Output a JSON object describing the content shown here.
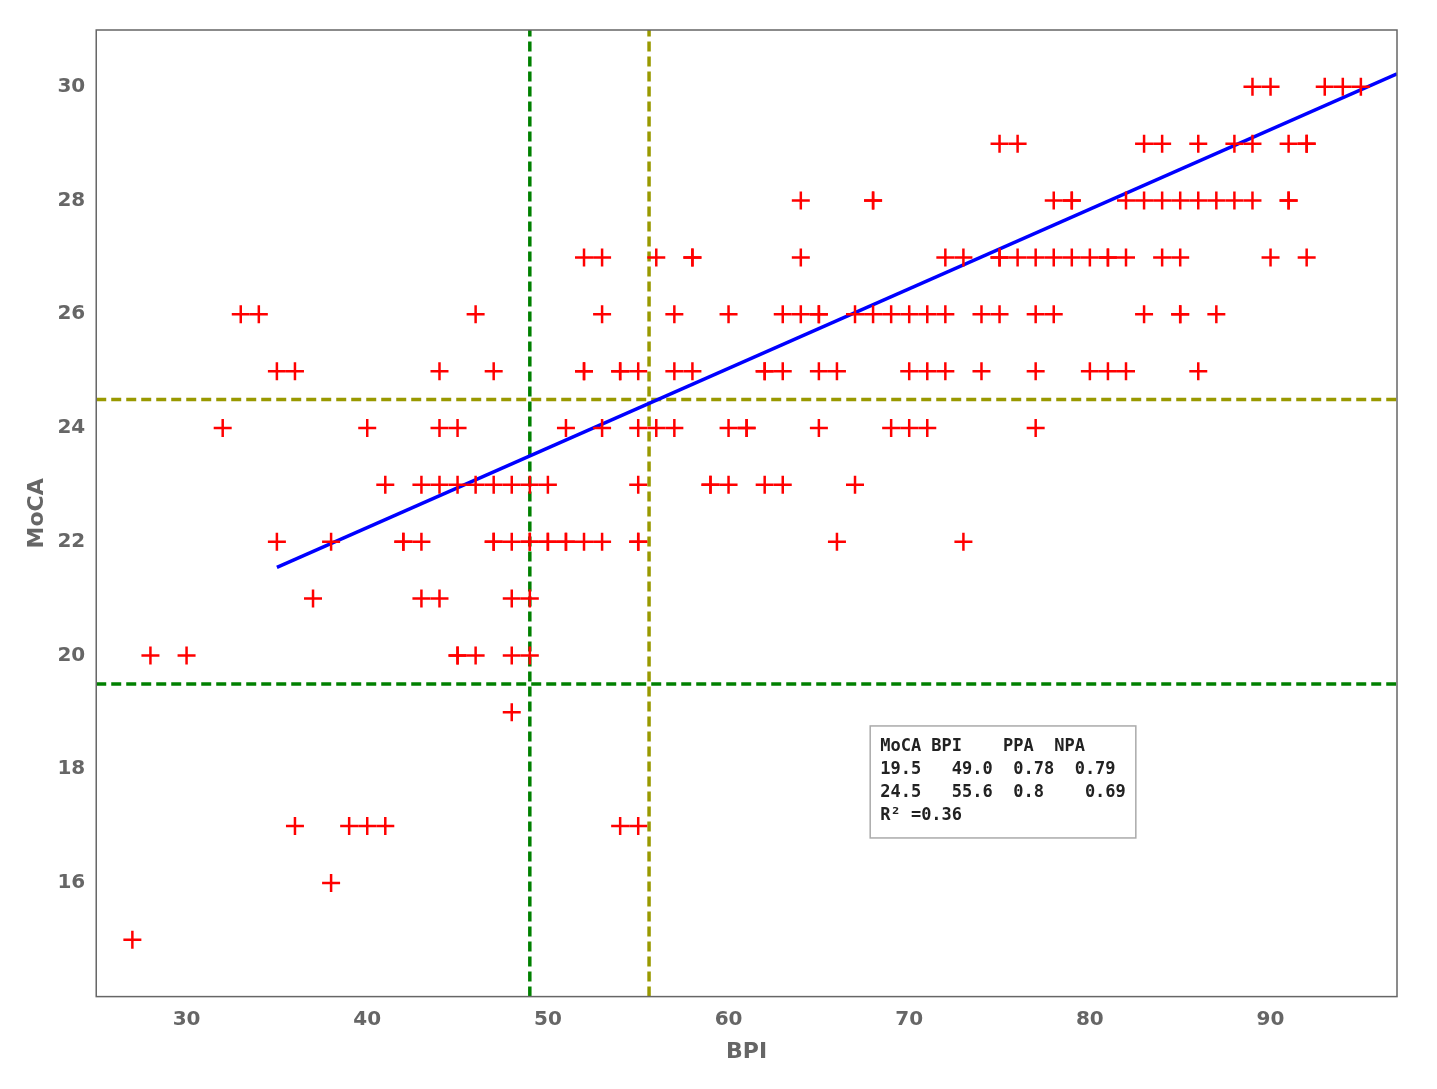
{
  "chart_data": {
    "type": "scatter",
    "xlabel": "BPI",
    "ylabel": "MoCA",
    "xlim": [
      25,
      97
    ],
    "ylim": [
      14,
      31
    ],
    "xticks": [
      30,
      40,
      50,
      60,
      70,
      80,
      90
    ],
    "yticks": [
      16,
      18,
      20,
      22,
      24,
      26,
      28,
      30
    ],
    "grid": false,
    "series": [
      {
        "type": "scatter",
        "color": "#ff0000",
        "marker": "+",
        "x": [
          27,
          28,
          30,
          32,
          33,
          34,
          35,
          35,
          36,
          36,
          37,
          38,
          38,
          39,
          40,
          40,
          41,
          41,
          42,
          42,
          43,
          43,
          43,
          44,
          44,
          44,
          44,
          45,
          45,
          45,
          45,
          46,
          46,
          46,
          47,
          47,
          47,
          47,
          48,
          48,
          48,
          48,
          48,
          49,
          49,
          49,
          49,
          49,
          50,
          50,
          50,
          51,
          51,
          51,
          52,
          52,
          52,
          52,
          53,
          53,
          53,
          53,
          54,
          54,
          54,
          55,
          55,
          55,
          55,
          55,
          55,
          56,
          56,
          57,
          57,
          57,
          58,
          58,
          58,
          59,
          59,
          60,
          60,
          60,
          61,
          61,
          62,
          62,
          62,
          63,
          63,
          63,
          64,
          64,
          64,
          65,
          65,
          65,
          65,
          66,
          66,
          67,
          67,
          68,
          68,
          68,
          69,
          69,
          70,
          70,
          70,
          71,
          71,
          71,
          72,
          72,
          72,
          73,
          73,
          74,
          74,
          75,
          75,
          75,
          75,
          76,
          76,
          77,
          77,
          77,
          77,
          78,
          78,
          78,
          79,
          79,
          79,
          80,
          80,
          81,
          81,
          81,
          82,
          82,
          82,
          83,
          83,
          83,
          84,
          84,
          84,
          85,
          85,
          85,
          85,
          86,
          86,
          86,
          87,
          87,
          88,
          88,
          89,
          89,
          89,
          90,
          90,
          91,
          91,
          91,
          92,
          92,
          92,
          93,
          94,
          95
        ],
        "values": [
          15,
          20,
          20,
          24,
          26,
          26,
          22,
          25,
          17,
          25,
          21,
          16,
          22,
          17,
          24,
          17,
          17,
          23,
          22,
          22,
          21,
          22,
          23,
          21,
          24,
          23,
          25,
          20,
          20,
          24,
          23,
          20,
          26,
          23,
          25,
          22,
          22,
          23,
          19,
          21,
          23,
          20,
          22,
          22,
          23,
          20,
          22,
          21,
          22,
          22,
          23,
          22,
          22,
          24,
          25,
          27,
          25,
          22,
          24,
          26,
          22,
          27,
          25,
          17,
          25,
          17,
          24,
          25,
          22,
          22,
          23,
          27,
          24,
          24,
          25,
          26,
          27,
          25,
          27,
          23,
          23,
          24,
          26,
          23,
          24,
          24,
          25,
          23,
          25,
          23,
          26,
          25,
          27,
          28,
          26,
          26,
          25,
          24,
          26,
          25,
          22,
          26,
          23,
          28,
          28,
          26,
          26,
          24,
          26,
          24,
          25,
          26,
          25,
          24,
          27,
          26,
          25,
          27,
          22,
          26,
          25,
          26,
          27,
          27,
          29,
          27,
          29,
          24,
          26,
          27,
          25,
          28,
          27,
          26,
          27,
          28,
          28,
          27,
          25,
          27,
          27,
          25,
          28,
          27,
          25,
          29,
          28,
          26,
          27,
          29,
          28,
          27,
          28,
          26,
          26,
          29,
          25,
          28,
          28,
          26,
          28,
          29,
          28,
          29,
          30,
          27,
          30,
          29,
          28,
          28,
          27,
          29,
          29,
          30,
          30,
          30
        ]
      },
      {
        "type": "line",
        "color": "#0000ff",
        "line_style": "solid",
        "x": [
          35,
          97
        ],
        "values": [
          21.55,
          30.23
        ]
      }
    ],
    "hlines": [
      {
        "value": 19.5,
        "color": "#008000",
        "line_style": "dashed"
      },
      {
        "value": 24.5,
        "color": "#999900",
        "line_style": "dashed"
      }
    ],
    "vlines": [
      {
        "value": 49.0,
        "color": "#008000",
        "line_style": "dashed"
      },
      {
        "value": 55.6,
        "color": "#999900",
        "line_style": "dashed"
      }
    ],
    "annotation": [
      "MoCA BPI    PPA  NPA",
      "19.5   49.0  0.78  0.79",
      "24.5   55.6  0.8    0.69",
      "R² =0.36"
    ]
  }
}
